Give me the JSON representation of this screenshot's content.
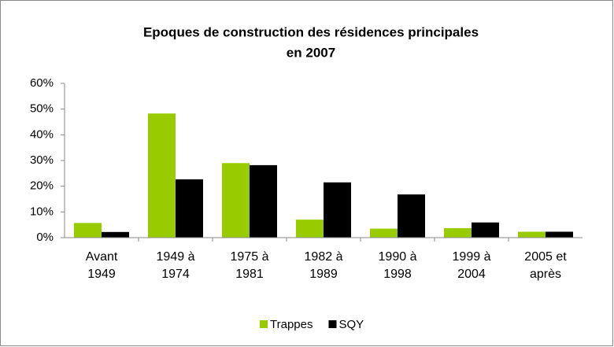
{
  "chart_data": {
    "type": "bar",
    "title": "Epoques de construction des résidences principales",
    "subtitle": "en 2007",
    "categories": [
      "Avant 1949",
      "1949 à 1974",
      "1975 à 1981",
      "1982 à 1989",
      "1990 à 1998",
      "1999 à 2004",
      "2005 et après"
    ],
    "series": [
      {
        "name": "Trappes",
        "color": "#99cc00",
        "values": [
          5.7,
          48.3,
          29,
          7,
          3.5,
          3.7,
          2.3
        ]
      },
      {
        "name": "SQY",
        "color": "#000000",
        "values": [
          2.2,
          22.7,
          28.2,
          21.5,
          16.8,
          5.9,
          2.3
        ]
      }
    ],
    "ylim": [
      0,
      60
    ],
    "yticks": [
      {
        "value": 0,
        "label": "0%"
      },
      {
        "value": 10,
        "label": "10%"
      },
      {
        "value": 20,
        "label": "20%"
      },
      {
        "value": 30,
        "label": "30%"
      },
      {
        "value": 40,
        "label": "40%"
      },
      {
        "value": 50,
        "label": "50%"
      },
      {
        "value": 60,
        "label": "60%"
      }
    ],
    "grid": false,
    "legend": "bottom"
  }
}
